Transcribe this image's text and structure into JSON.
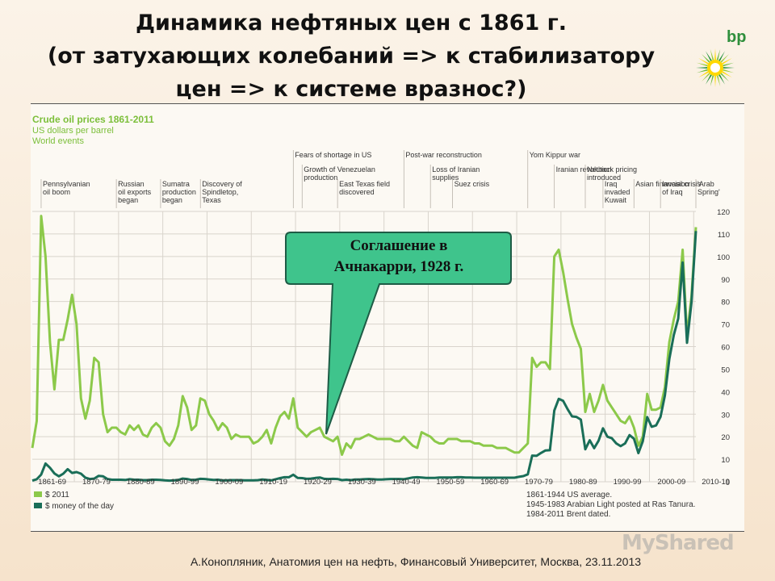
{
  "slide": {
    "title_line1": "Динамика нефтяных цен с 1861 г.",
    "title_line2": "(от затухающих колебаний => к стабилизатору",
    "title_line3": "цен => к системе вразнос?)",
    "logo_text": "bp",
    "footer": "А.Конопляник, Анатомия цен на нефть, Финансовый Университет, Москва, 23.11.2013",
    "watermark": "MyShared",
    "callout_line1": "Соглашение в",
    "callout_line2": "Ачнакарри, 1928 г."
  },
  "colors": {
    "light_green": "#8cc94a",
    "dark_green": "#1a6e58",
    "header_green": "#7cbf3a",
    "callout_fill": "#3fc48c",
    "callout_border": "#1e5c46"
  },
  "chart_data": {
    "type": "line",
    "title": "Crude oil prices 1861-2011",
    "subtitle1": "US dollars per barrel",
    "subtitle2": "World events",
    "ylim": [
      0,
      120
    ],
    "yticks": [
      0,
      10,
      20,
      30,
      40,
      50,
      60,
      70,
      80,
      90,
      100,
      110,
      120
    ],
    "xlim": [
      1861,
      2011
    ],
    "xtick_labels": [
      "1861-69",
      "1870-79",
      "1880-89",
      "1890-99",
      "1900-09",
      "1910-19",
      "1920-29",
      "1930-39",
      "1940-49",
      "1950-59",
      "1960-69",
      "1970-79",
      "1980-89",
      "1990-99",
      "2000-09",
      "2010-19"
    ],
    "legend": [
      "$ 2011",
      "$ money of the day"
    ],
    "notes": [
      "1861-1944 US average.",
      "1945-1983 Arabian Light posted at Ras Tanura.",
      "1984-2011 Brent dated."
    ],
    "events": [
      {
        "year": 1863,
        "lines": [
          "Pennsylvanian",
          "oil boom"
        ]
      },
      {
        "year": 1880,
        "lines": [
          "Russian",
          "oil exports",
          "began"
        ]
      },
      {
        "year": 1890,
        "lines": [
          "Sumatra",
          "production",
          "began"
        ]
      },
      {
        "year": 1899,
        "lines": [
          "Discovery of",
          "Spindletop,",
          "Texas"
        ]
      },
      {
        "year": 1920,
        "lines": [
          "Fears of shortage in US"
        ]
      },
      {
        "year": 1922,
        "lines": [
          "Growth of Venezuelan",
          "production"
        ]
      },
      {
        "year": 1930,
        "lines": [
          "East Texas field",
          "discovered"
        ]
      },
      {
        "year": 1945,
        "lines": [
          "Post-war reconstruction"
        ]
      },
      {
        "year": 1951,
        "lines": [
          "Loss of Iranian",
          "supplies"
        ]
      },
      {
        "year": 1956,
        "lines": [
          "Suez crisis"
        ]
      },
      {
        "year": 1973,
        "lines": [
          "Yom Kippur war"
        ]
      },
      {
        "year": 1979,
        "lines": [
          "Iranian revolution"
        ]
      },
      {
        "year": 1986,
        "lines": [
          "Netback pricing",
          "introduced"
        ]
      },
      {
        "year": 1990,
        "lines": [
          "Iraq",
          "invaded",
          "Kuwait"
        ]
      },
      {
        "year": 1997,
        "lines": [
          "Asian financial crisis"
        ]
      },
      {
        "year": 2003,
        "lines": [
          "Invasion",
          "of Iraq"
        ]
      },
      {
        "year": 2011,
        "lines": [
          "'Arab",
          "Spring'"
        ]
      }
    ],
    "series": [
      {
        "name": "$ 2011",
        "x": [
          1861,
          1862,
          1863,
          1864,
          1865,
          1866,
          1867,
          1868,
          1869,
          1870,
          1871,
          1872,
          1873,
          1874,
          1875,
          1876,
          1877,
          1878,
          1879,
          1880,
          1881,
          1882,
          1883,
          1884,
          1885,
          1886,
          1887,
          1888,
          1889,
          1890,
          1891,
          1892,
          1893,
          1894,
          1895,
          1896,
          1897,
          1898,
          1899,
          1900,
          1901,
          1902,
          1903,
          1904,
          1905,
          1906,
          1907,
          1908,
          1909,
          1910,
          1911,
          1912,
          1913,
          1914,
          1915,
          1916,
          1917,
          1918,
          1919,
          1920,
          1921,
          1922,
          1923,
          1924,
          1925,
          1926,
          1927,
          1928,
          1929,
          1930,
          1931,
          1932,
          1933,
          1934,
          1935,
          1936,
          1937,
          1938,
          1939,
          1940,
          1941,
          1942,
          1943,
          1944,
          1945,
          1946,
          1947,
          1948,
          1949,
          1950,
          1951,
          1952,
          1953,
          1954,
          1955,
          1956,
          1957,
          1958,
          1959,
          1960,
          1961,
          1962,
          1963,
          1964,
          1965,
          1966,
          1967,
          1968,
          1969,
          1970,
          1971,
          1972,
          1973,
          1974,
          1975,
          1976,
          1977,
          1978,
          1979,
          1980,
          1981,
          1982,
          1983,
          1984,
          1985,
          1986,
          1987,
          1988,
          1989,
          1990,
          1991,
          1992,
          1993,
          1994,
          1995,
          1996,
          1997,
          1998,
          1999,
          2000,
          2001,
          2002,
          2003,
          2004,
          2005,
          2006,
          2007,
          2008,
          2009,
          2010,
          2011
        ],
        "values": [
          15,
          27,
          118,
          100,
          62,
          41,
          63,
          63,
          72,
          83,
          70,
          37,
          28,
          36,
          55,
          53,
          30,
          22,
          24,
          24,
          22,
          21,
          25,
          23,
          25,
          21,
          20,
          24,
          26,
          24,
          18,
          16,
          19,
          25,
          38,
          33,
          23,
          25,
          37,
          36,
          30,
          27,
          23,
          26,
          24,
          19,
          21,
          20,
          20,
          20,
          17,
          18,
          20,
          23,
          17,
          24,
          29,
          31,
          28,
          37,
          24,
          22,
          20,
          22,
          23,
          24,
          20,
          19,
          18,
          20,
          12,
          17,
          15,
          19,
          19,
          20,
          21,
          20,
          19,
          19,
          19,
          19,
          18,
          18,
          20,
          18,
          16,
          15,
          22,
          21,
          20,
          18,
          17,
          17,
          19,
          19,
          19,
          18,
          18,
          18,
          17,
          17,
          16,
          16,
          16,
          15,
          15,
          15,
          14,
          13,
          13,
          15,
          17,
          55,
          51,
          53,
          53,
          50,
          100,
          103,
          93,
          81,
          70,
          64,
          59,
          31,
          39,
          31,
          36,
          43,
          36,
          33,
          30,
          27,
          26,
          29,
          24,
          16,
          20,
          39,
          32,
          32,
          33,
          42,
          62,
          72,
          80,
          103,
          65,
          82,
          113
        ]
      },
      {
        "name": "$ money of the day",
        "x": [
          1861,
          1862,
          1863,
          1864,
          1865,
          1866,
          1867,
          1868,
          1869,
          1870,
          1871,
          1872,
          1873,
          1874,
          1875,
          1876,
          1877,
          1878,
          1879,
          1880,
          1881,
          1882,
          1883,
          1884,
          1885,
          1886,
          1887,
          1888,
          1889,
          1890,
          1891,
          1892,
          1893,
          1894,
          1895,
          1896,
          1897,
          1898,
          1899,
          1900,
          1901,
          1902,
          1903,
          1904,
          1905,
          1906,
          1907,
          1908,
          1909,
          1910,
          1911,
          1912,
          1913,
          1914,
          1915,
          1916,
          1917,
          1918,
          1919,
          1920,
          1921,
          1922,
          1923,
          1924,
          1925,
          1926,
          1927,
          1928,
          1929,
          1930,
          1931,
          1932,
          1933,
          1934,
          1935,
          1936,
          1937,
          1938,
          1939,
          1940,
          1941,
          1942,
          1943,
          1944,
          1945,
          1946,
          1947,
          1948,
          1949,
          1950,
          1951,
          1952,
          1953,
          1954,
          1955,
          1956,
          1957,
          1958,
          1959,
          1960,
          1961,
          1962,
          1963,
          1964,
          1965,
          1966,
          1967,
          1968,
          1969,
          1970,
          1971,
          1972,
          1973,
          1974,
          1975,
          1976,
          1977,
          1978,
          1979,
          1980,
          1981,
          1982,
          1983,
          1984,
          1985,
          1986,
          1987,
          1988,
          1989,
          1990,
          1991,
          1992,
          1993,
          1994,
          1995,
          1996,
          1997,
          1998,
          1999,
          2000,
          2001,
          2002,
          2003,
          2004,
          2005,
          2006,
          2007,
          2008,
          2009,
          2010,
          2011
        ],
        "values": [
          0.5,
          1.1,
          3.2,
          8.1,
          6.2,
          3.7,
          2.4,
          3.6,
          5.6,
          3.9,
          4.3,
          3.6,
          1.8,
          1.2,
          1.4,
          2.6,
          2.4,
          1.2,
          0.9,
          0.9,
          0.9,
          0.8,
          1.1,
          0.9,
          0.9,
          0.7,
          0.7,
          0.9,
          0.9,
          0.8,
          0.6,
          0.5,
          0.6,
          0.8,
          1.4,
          1.2,
          0.8,
          0.9,
          1.3,
          1.2,
          1.0,
          0.8,
          0.9,
          0.6,
          0.6,
          0.7,
          0.7,
          0.7,
          0.6,
          0.6,
          0.6,
          0.7,
          1.0,
          0.8,
          0.6,
          1.1,
          1.6,
          2.0,
          2.0,
          3.1,
          1.7,
          1.6,
          1.3,
          1.4,
          1.7,
          1.9,
          1.3,
          1.2,
          1.3,
          1.2,
          0.7,
          0.9,
          0.7,
          1.0,
          1.0,
          1.1,
          1.2,
          1.1,
          1.0,
          1.0,
          1.1,
          1.2,
          1.2,
          1.2,
          1.1,
          1.5,
          1.9,
          2.0,
          1.9,
          1.7,
          1.7,
          1.7,
          1.9,
          1.9,
          1.9,
          1.9,
          2.0,
          2.0,
          1.9,
          1.9,
          1.8,
          1.8,
          1.8,
          1.8,
          1.8,
          1.8,
          1.8,
          1.8,
          1.8,
          1.8,
          2.2,
          2.5,
          3.3,
          11.6,
          11.5,
          12.8,
          13.9,
          14.0,
          31.6,
          36.8,
          35.9,
          32.2,
          29.0,
          28.8,
          27.6,
          14.4,
          18.4,
          14.9,
          18.2,
          23.7,
          20.0,
          19.3,
          17.0,
          15.8,
          17.0,
          20.7,
          19.1,
          12.7,
          17.9,
          28.7,
          24.4,
          25.0,
          28.8,
          38.3,
          54.5,
          65.1,
          72.4,
          97.3,
          61.7,
          79.5,
          111.3
        ]
      }
    ]
  }
}
